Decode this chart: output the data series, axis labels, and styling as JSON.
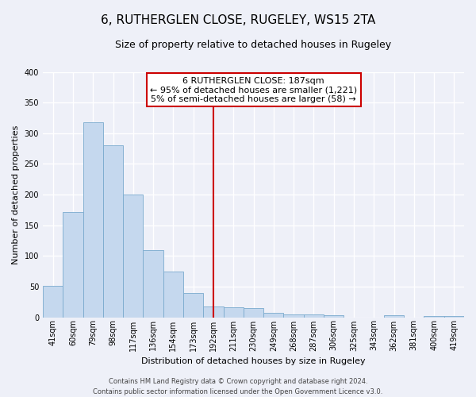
{
  "title": "6, RUTHERGLEN CLOSE, RUGELEY, WS15 2TA",
  "subtitle": "Size of property relative to detached houses in Rugeley",
  "xlabel": "Distribution of detached houses by size in Rugeley",
  "ylabel": "Number of detached properties",
  "bar_labels": [
    "41sqm",
    "60sqm",
    "79sqm",
    "98sqm",
    "117sqm",
    "136sqm",
    "154sqm",
    "173sqm",
    "192sqm",
    "211sqm",
    "230sqm",
    "249sqm",
    "268sqm",
    "287sqm",
    "306sqm",
    "325sqm",
    "343sqm",
    "362sqm",
    "381sqm",
    "400sqm",
    "419sqm"
  ],
  "bar_values": [
    51,
    172,
    318,
    280,
    200,
    110,
    75,
    39,
    18,
    16,
    15,
    7,
    5,
    4,
    3,
    0,
    0,
    3,
    0,
    2,
    2
  ],
  "bar_color": "#c5d8ee",
  "bar_edge_color": "#7aaace",
  "vline_x": 8.0,
  "vline_color": "#cc0000",
  "annotation_title": "6 RUTHERGLEN CLOSE: 187sqm",
  "annotation_line1": "← 95% of detached houses are smaller (1,221)",
  "annotation_line2": "5% of semi-detached houses are larger (58) →",
  "annotation_box_color": "#ffffff",
  "annotation_box_edge": "#cc0000",
  "ylim": [
    0,
    400
  ],
  "yticks": [
    0,
    50,
    100,
    150,
    200,
    250,
    300,
    350,
    400
  ],
  "footer_line1": "Contains HM Land Registry data © Crown copyright and database right 2024.",
  "footer_line2": "Contains public sector information licensed under the Open Government Licence v3.0.",
  "background_color": "#eef0f8",
  "grid_color": "#ffffff",
  "title_fontsize": 11,
  "subtitle_fontsize": 9,
  "annotation_fontsize": 8,
  "tick_fontsize": 7,
  "xlabel_fontsize": 8,
  "ylabel_fontsize": 8,
  "footer_fontsize": 6
}
